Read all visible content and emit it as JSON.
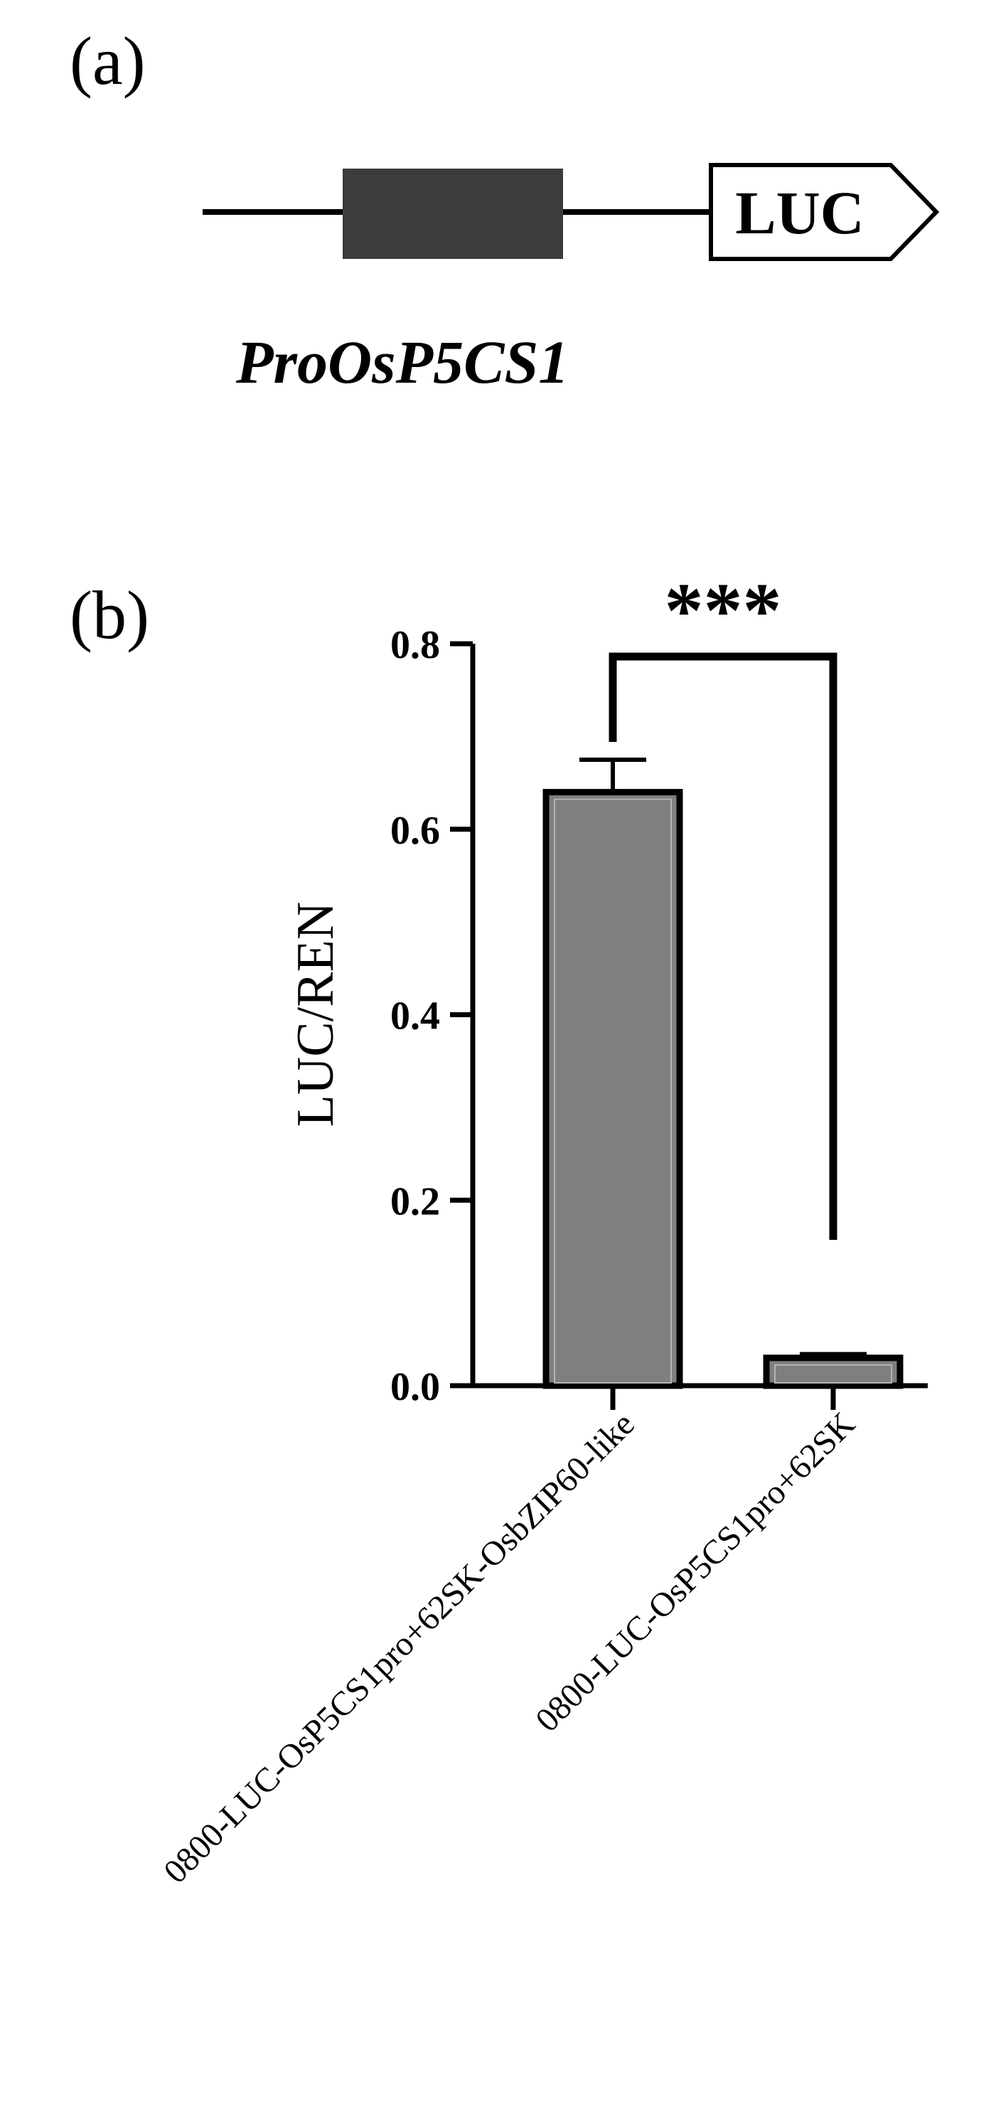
{
  "panel_a": {
    "label": "(a)",
    "reporter_label": "LUC",
    "promoter_label": "ProOsP5CS1"
  },
  "panel_b": {
    "label": "(b)"
  },
  "chart_data": {
    "type": "bar",
    "categories": [
      "0800-LUC-OsP5CS1pro+62SK-OsbZIP60-like",
      "0800-LUC-OsP5CS1pro+62SK"
    ],
    "values": [
      0.64,
      0.03
    ],
    "errors": [
      0.035,
      0.004
    ],
    "ylabel": "LUC/REN",
    "xlabel": "",
    "title": "",
    "ylim": [
      0,
      0.8
    ],
    "yticks": [
      0.0,
      0.2,
      0.4,
      0.6,
      0.8
    ],
    "ytick_labels": [
      "0.0",
      "0.2",
      "0.4",
      "0.6",
      "0.8"
    ],
    "bar_color": "#7f7f7f",
    "significance": {
      "label": "***",
      "between": [
        0,
        1
      ]
    }
  }
}
